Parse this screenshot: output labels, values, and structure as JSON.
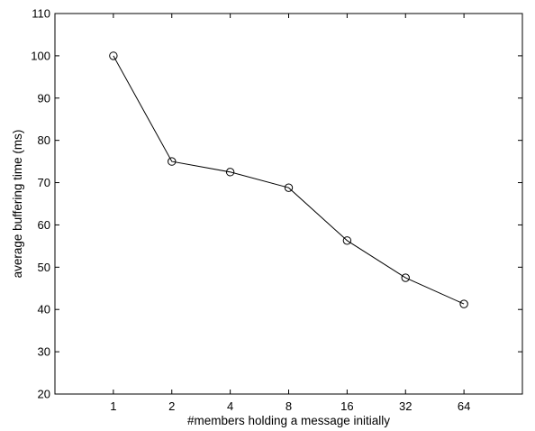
{
  "chart_data": {
    "type": "line",
    "title": "",
    "xlabel": "#members holding a message initially",
    "ylabel": "average buffering time (ms)",
    "categories": [
      "1",
      "2",
      "4",
      "8",
      "16",
      "32",
      "64"
    ],
    "x_positions": [
      1,
      2,
      3,
      4,
      5,
      6,
      7
    ],
    "xlim": [
      0,
      8
    ],
    "ylim": [
      20,
      110
    ],
    "yticks": [
      20,
      30,
      40,
      50,
      60,
      70,
      80,
      90,
      100,
      110
    ],
    "grid": false,
    "legend": "none",
    "series": [
      {
        "values": [
          100.0,
          75.0,
          72.5,
          68.8,
          56.3,
          47.5,
          41.3
        ],
        "marker": "open-circle",
        "color": "#000000"
      }
    ]
  }
}
